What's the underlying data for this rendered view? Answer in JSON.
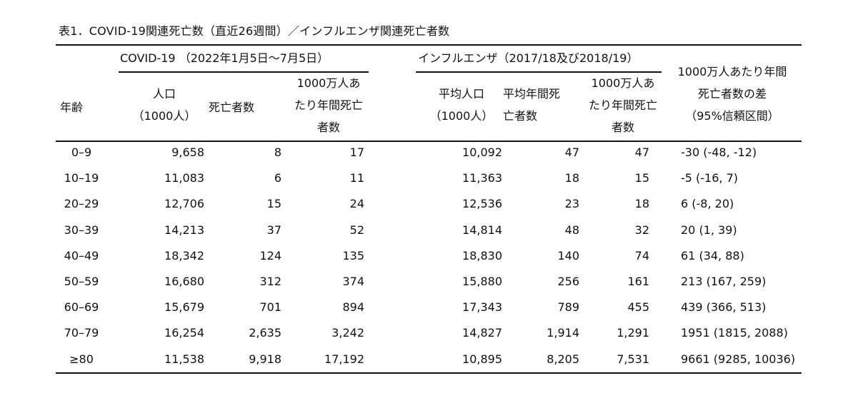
{
  "caption": "表1．COVID-19関連死亡数（直近26週間）／インフルエンザ関連死亡者数",
  "header": {
    "age": "年齢",
    "covid_group": "COVID-19 （2022年1月5日〜7月5日）",
    "flu_group": "インフルエンザ（2017/18及び2018/19）",
    "covid_pop_1": "人口",
    "covid_pop_2": "（1000人）",
    "covid_deaths": "死亡者数",
    "covid_rate_1": "1000万人あ",
    "covid_rate_2": "たり年間死亡",
    "covid_rate_3": "者数",
    "flu_pop_1": "平均人口",
    "flu_pop_2": "（1000人）",
    "flu_deaths_1": "平均年間死",
    "flu_deaths_2": "亡者数",
    "flu_rate_1": "1000万人あ",
    "flu_rate_2": "たり年間死亡",
    "flu_rate_3": "者数",
    "diff_1": "1000万人あたり年間",
    "diff_2": "死亡者数の差",
    "diff_3": "（95%信頼区間）"
  },
  "rows": [
    {
      "age": "0–9",
      "covid_pop": "9,658",
      "covid_deaths": "8",
      "covid_rate": "17",
      "flu_pop": "10,092",
      "flu_deaths": "47",
      "flu_rate": "47",
      "diff": "-30 (-48, -12)"
    },
    {
      "age": "10–19",
      "covid_pop": "11,083",
      "covid_deaths": "6",
      "covid_rate": "11",
      "flu_pop": "11,363",
      "flu_deaths": "18",
      "flu_rate": "15",
      "diff": "-5 (-16, 7)"
    },
    {
      "age": "20–29",
      "covid_pop": "12,706",
      "covid_deaths": "15",
      "covid_rate": "24",
      "flu_pop": "12,536",
      "flu_deaths": "23",
      "flu_rate": "18",
      "diff": "6 (-8, 20)"
    },
    {
      "age": "30–39",
      "covid_pop": "14,213",
      "covid_deaths": "37",
      "covid_rate": "52",
      "flu_pop": "14,814",
      "flu_deaths": "48",
      "flu_rate": "32",
      "diff": "20 (1, 39)"
    },
    {
      "age": "40–49",
      "covid_pop": "18,342",
      "covid_deaths": "124",
      "covid_rate": "135",
      "flu_pop": "18,830",
      "flu_deaths": "140",
      "flu_rate": "74",
      "diff": "61 (34, 88)"
    },
    {
      "age": "50–59",
      "covid_pop": "16,680",
      "covid_deaths": "312",
      "covid_rate": "374",
      "flu_pop": "15,880",
      "flu_deaths": "256",
      "flu_rate": "161",
      "diff": "213 (167, 259)"
    },
    {
      "age": "60–69",
      "covid_pop": "15,679",
      "covid_deaths": "701",
      "covid_rate": "894",
      "flu_pop": "17,343",
      "flu_deaths": "789",
      "flu_rate": "455",
      "diff": "439 (366, 513)"
    },
    {
      "age": "70–79",
      "covid_pop": "16,254",
      "covid_deaths": "2,635",
      "covid_rate": "3,242",
      "flu_pop": "14,827",
      "flu_deaths": "1,914",
      "flu_rate": "1,291",
      "diff": "1951 (1815, 2088)"
    },
    {
      "age": "≥80",
      "covid_pop": "11,538",
      "covid_deaths": "9,918",
      "covid_rate": "17,192",
      "flu_pop": "10,895",
      "flu_deaths": "8,205",
      "flu_rate": "7,531",
      "diff": "9661 (9285, 10036)"
    }
  ]
}
